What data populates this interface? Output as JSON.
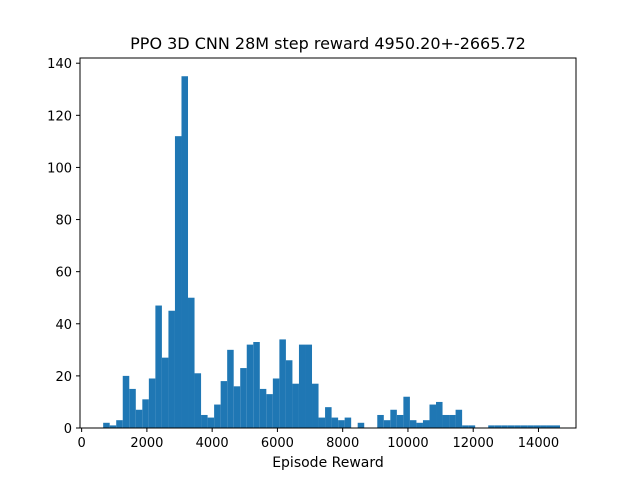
{
  "chart_data": {
    "type": "bar",
    "title": "PPO 3D CNN 28M step reward 4950.20+-2665.72",
    "xlabel": "Episode Reward",
    "ylabel": "",
    "xlim": [
      -50,
      15150
    ],
    "ylim": [
      0,
      142
    ],
    "grid": false,
    "legend": "none",
    "bar_color": "#1f77b4",
    "xticks": [
      0,
      2000,
      4000,
      6000,
      8000,
      10000,
      12000,
      14000
    ],
    "xtick_labels": [
      "0",
      "2000",
      "4000",
      "6000",
      "8000",
      "10000",
      "12000",
      "14000"
    ],
    "yticks": [
      0,
      20,
      40,
      60,
      80,
      100,
      120,
      140
    ],
    "ytick_labels": [
      "0",
      "20",
      "40",
      "60",
      "80",
      "100",
      "120",
      "140"
    ],
    "bin_edges": [
      660,
      860,
      1060,
      1260,
      1460,
      1660,
      1860,
      2060,
      2260,
      2460,
      2660,
      2860,
      3060,
      3260,
      3460,
      3660,
      3860,
      4060,
      4260,
      4460,
      4660,
      4860,
      5060,
      5260,
      5460,
      5660,
      5860,
      6060,
      6260,
      6460,
      6660,
      6860,
      7060,
      7260,
      7460,
      7660,
      7860,
      8060,
      8260,
      8460,
      8660,
      8860,
      9060,
      9260,
      9460,
      9660,
      9860,
      10060,
      10260,
      10460,
      10660,
      10860,
      11060,
      11260,
      11460,
      11660,
      11860,
      12060,
      12260,
      12460,
      12660,
      12860,
      13060,
      13260,
      13460,
      13660,
      13860,
      14060,
      14260,
      14460,
      14660
    ],
    "values": [
      2,
      1,
      3,
      20,
      15,
      7,
      11,
      19,
      47,
      27,
      45,
      112,
      135,
      50,
      21,
      5,
      4,
      9,
      18,
      30,
      16,
      23,
      32,
      33,
      15,
      13,
      19,
      34,
      26,
      17,
      32,
      32,
      17,
      4,
      8,
      4,
      3,
      4,
      0,
      2,
      0,
      0,
      5,
      3,
      7,
      5,
      12,
      3,
      2,
      3,
      9,
      10,
      5,
      5,
      7,
      1,
      1,
      0,
      0,
      1,
      1,
      1,
      1,
      1,
      1,
      1,
      1,
      1,
      1,
      1
    ]
  }
}
